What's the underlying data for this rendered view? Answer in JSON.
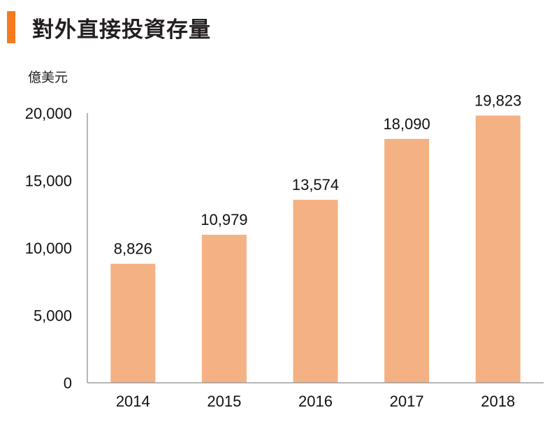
{
  "header": {
    "title": "對外直接投資存量",
    "accent_color": "#f47b20"
  },
  "chart_data": {
    "type": "bar",
    "title": "對外直接投資存量",
    "ylabel": "億美元",
    "xlabel": "",
    "categories": [
      "2014",
      "2015",
      "2016",
      "2017",
      "2018"
    ],
    "values": [
      8826,
      10979,
      13574,
      18090,
      19823
    ],
    "value_labels": [
      "8,826",
      "10,979",
      "13,574",
      "18,090",
      "19,823"
    ],
    "ylim": [
      0,
      20000
    ],
    "yticks": [
      0,
      5000,
      10000,
      15000,
      20000
    ],
    "ytick_labels": [
      "0",
      "5,000",
      "10,000",
      "15,000",
      "20,000"
    ],
    "bar_color": "#f4b183",
    "grid": false,
    "legend": "none"
  }
}
